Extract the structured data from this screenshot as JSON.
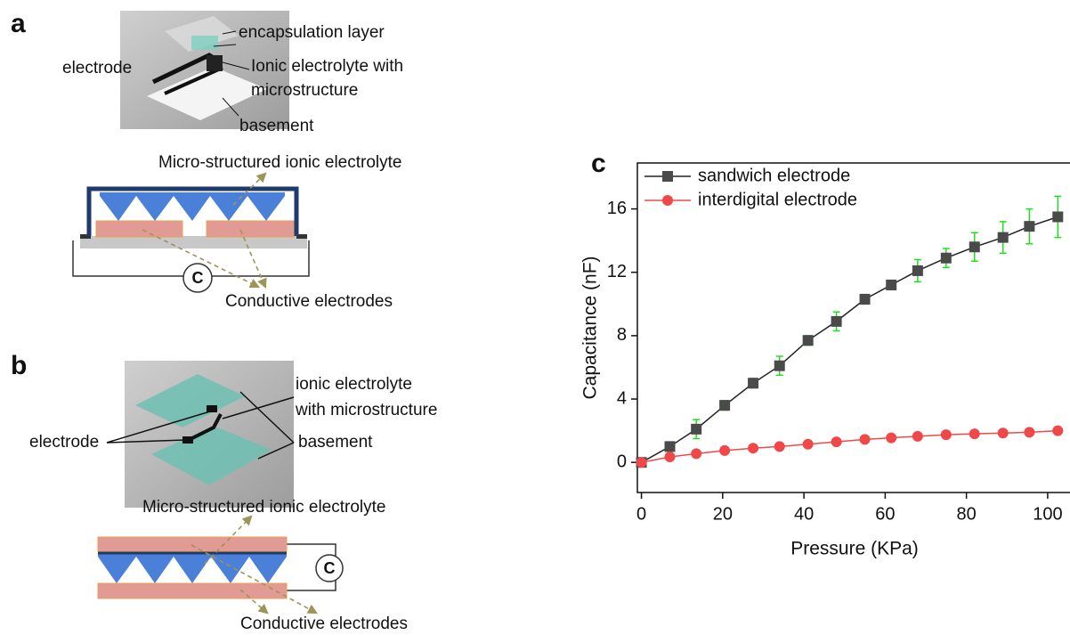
{
  "panels": [
    {
      "label": "a",
      "photo_labels": [
        "encapsulation layer",
        "electrode",
        "Ionic electrolyte with",
        "microstructure",
        "basement"
      ],
      "diagram_labels": {
        "top": "Micro-structured ionic electrolyte",
        "circuit": "C",
        "bottom": "Conductive electrodes"
      }
    },
    {
      "label": "b",
      "photo_labels": [
        "ionic electrolyte",
        "with microstructure",
        "electrode",
        "basement"
      ],
      "diagram_labels": {
        "top": "Micro-structured ionic electrolyte",
        "circuit": "C",
        "bottom": "Conductive electrodes"
      }
    }
  ],
  "chart_data": {
    "type": "line",
    "panel_label": "c",
    "x_label": "Pressure (KPa)",
    "y_label": "Capacitance (nF)",
    "x": [
      0,
      7,
      13.5,
      20.5,
      27.5,
      34,
      41,
      48,
      55,
      61.5,
      68,
      75,
      82,
      89,
      95.5,
      102.5
    ],
    "series": [
      {
        "name": "sandwich electrode",
        "color": "#4a4a4a",
        "line_color": "#222222",
        "marker": "square",
        "error_color": "#22dd22",
        "values": [
          0,
          1.0,
          2.1,
          3.6,
          5.0,
          6.1,
          7.7,
          8.9,
          10.3,
          11.2,
          12.1,
          12.9,
          13.6,
          14.2,
          14.9,
          15.5
        ],
        "errors": [
          0,
          0.3,
          0.6,
          0.3,
          0.3,
          0.6,
          0.3,
          0.6,
          0.3,
          0.3,
          0.7,
          0.6,
          0.9,
          1.0,
          1.1,
          1.3
        ]
      },
      {
        "name": "interdigital electrode",
        "color": "#f04848",
        "line_color": "#f04848",
        "marker": "circle",
        "values": [
          0,
          0.35,
          0.55,
          0.75,
          0.9,
          1.0,
          1.15,
          1.3,
          1.45,
          1.55,
          1.65,
          1.75,
          1.8,
          1.85,
          1.9,
          2.0
        ]
      }
    ],
    "xlim": [
      -1,
      105.5
    ],
    "ylim": [
      -1.9,
      18.9
    ],
    "xticks": [
      0,
      20,
      40,
      60,
      80,
      100
    ],
    "yticks": [
      0,
      4,
      8,
      12,
      16
    ],
    "legend": "upper left"
  }
}
